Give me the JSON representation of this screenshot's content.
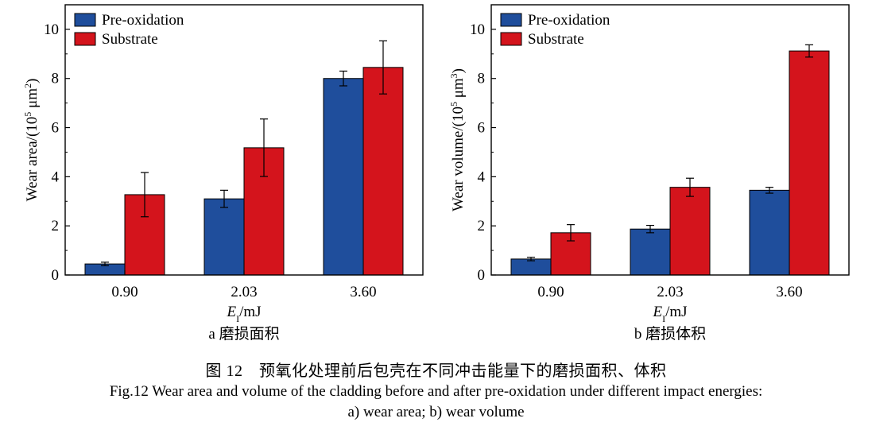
{
  "chart_data": [
    {
      "type": "bar",
      "categories": [
        "0.90",
        "2.03",
        "3.60"
      ],
      "series": [
        {
          "name": "Pre-oxidation",
          "color": "#1f4e9c",
          "values": [
            0.45,
            3.1,
            8.0
          ],
          "errors": [
            0.07,
            0.35,
            0.3
          ]
        },
        {
          "name": "Substrate",
          "color": "#d4141c",
          "values": [
            3.27,
            5.18,
            8.45
          ],
          "errors": [
            0.9,
            1.17,
            1.08
          ]
        }
      ],
      "ylim": [
        0,
        11
      ],
      "yticks": [
        "0",
        "2",
        "4",
        "6",
        "8",
        "10"
      ],
      "ylabel_main": "Wear area/(10",
      "ylabel_sup": "5",
      "ylabel_mid": " μm",
      "ylabel_sup2": "2",
      "ylabel_end": ")",
      "xlabel_var": "E",
      "xlabel_sub": "I",
      "xlabel_unit": "/mJ",
      "legend_position": "top-left",
      "subcaption": "a  磨损面积"
    },
    {
      "type": "bar",
      "categories": [
        "0.90",
        "2.03",
        "3.60"
      ],
      "series": [
        {
          "name": "Pre-oxidation",
          "color": "#1f4e9c",
          "values": [
            0.65,
            1.87,
            3.45
          ],
          "errors": [
            0.07,
            0.15,
            0.12
          ]
        },
        {
          "name": "Substrate",
          "color": "#d4141c",
          "values": [
            1.72,
            3.57,
            9.12
          ],
          "errors": [
            0.33,
            0.37,
            0.25
          ]
        }
      ],
      "ylim": [
        0,
        11
      ],
      "yticks": [
        "0",
        "2",
        "4",
        "6",
        "8",
        "10"
      ],
      "ylabel_main": "Wear volume/(10",
      "ylabel_sup": "5",
      "ylabel_mid": " μm",
      "ylabel_sup2": "3",
      "ylabel_end": ")",
      "xlabel_var": "E",
      "xlabel_sub": "I",
      "xlabel_unit": "/mJ",
      "legend_position": "top-left",
      "subcaption": "b  磨损体积"
    }
  ],
  "caption": {
    "cn": "图 12　预氧化处理前后包壳在不同冲击能量下的磨损面积、体积",
    "en_line1": "Fig.12 Wear area and volume of the cladding before and after pre-oxidation under different impact energies:",
    "en_line2": "a) wear area; b) wear volume"
  }
}
